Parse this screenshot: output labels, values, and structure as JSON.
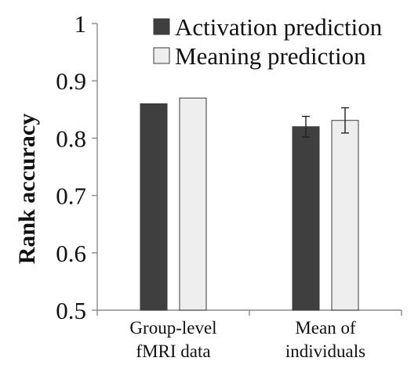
{
  "chart_data": {
    "type": "bar",
    "title": "",
    "xlabel": "",
    "ylabel": "Rank accuracy",
    "ylim": [
      0.5,
      1.0
    ],
    "yticks": [
      0.5,
      0.6,
      0.7,
      0.8,
      0.9,
      1.0
    ],
    "ytick_labels": [
      "0.5",
      "0.6",
      "0.7",
      "0.8",
      "0.9",
      "1"
    ],
    "categories": [
      {
        "id": "group",
        "line1": "Group-level",
        "line2": "fMRI data"
      },
      {
        "id": "mean",
        "line1": "Mean of",
        "line2": "individuals"
      }
    ],
    "series": [
      {
        "name": "Activation prediction",
        "color": "#3f3f3f",
        "values": [
          0.86,
          0.82
        ],
        "errors": [
          null,
          0.018
        ]
      },
      {
        "name": "Meaning prediction",
        "color": "#eeeeee",
        "values": [
          0.87,
          0.831
        ],
        "errors": [
          null,
          0.022
        ]
      }
    ],
    "legend_position": "top-right",
    "grid": false
  }
}
